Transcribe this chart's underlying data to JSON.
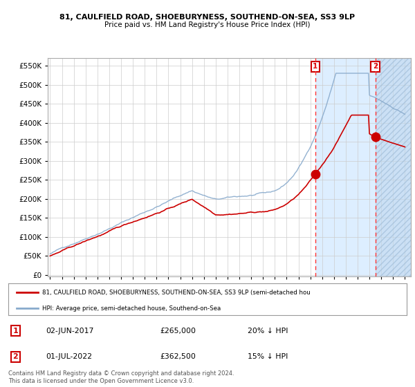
{
  "title1": "81, CAULFIELD ROAD, SHOEBURYNESS, SOUTHEND-ON-SEA, SS3 9LP",
  "title2": "Price paid vs. HM Land Registry's House Price Index (HPI)",
  "legend_red": "81, CAULFIELD ROAD, SHOEBURYNESS, SOUTHEND-ON-SEA, SS3 9LP (semi-detached hou",
  "legend_blue": "HPI: Average price, semi-detached house, Southend-on-Sea",
  "annotation1_date": "02-JUN-2017",
  "annotation1_price": "£265,000",
  "annotation1_hpi": "20% ↓ HPI",
  "annotation1_year": 2017.42,
  "annotation1_value": 265000,
  "annotation2_date": "01-JUL-2022",
  "annotation2_price": "£362,500",
  "annotation2_hpi": "15% ↓ HPI",
  "annotation2_year": 2022.5,
  "annotation2_value": 362500,
  "footer": "Contains HM Land Registry data © Crown copyright and database right 2024.\nThis data is licensed under the Open Government Licence v3.0.",
  "bg_blue_color": "#ddeeff",
  "hatch_color": "#c0d8ef",
  "vline1_color": "#ff3333",
  "vline2_color": "#7799bb",
  "red_line_color": "#cc0000",
  "blue_line_color": "#88aacc",
  "grid_color": "#cccccc",
  "box_color": "#cc0000"
}
